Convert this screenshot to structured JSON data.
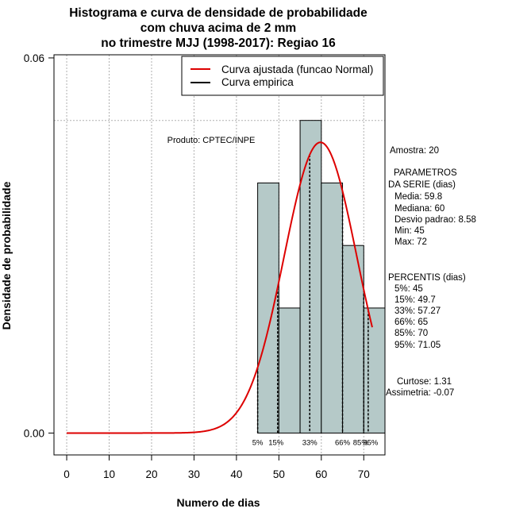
{
  "chart_data": {
    "type": "bar",
    "title_lines": [
      "Histograma e curva de densidade de probabilidade",
      "com chuva acima de 2 mm",
      "no trimestre MJJ (1998-2017): Regiao 16"
    ],
    "xlabel": "Numero de dias",
    "ylabel": "Densidade de probabilidade",
    "xlim": [
      -3,
      75
    ],
    "ylim": [
      -0.0035,
      0.0605
    ],
    "x_ticks": [
      0,
      10,
      20,
      30,
      40,
      50,
      60,
      70
    ],
    "y_ticks": [
      {
        "value": 0.0,
        "label": "0.00"
      },
      {
        "value": 0.06,
        "label": "0.06"
      }
    ],
    "grid": true,
    "reference_line_y": 0.05,
    "histogram": {
      "bins": [
        {
          "x0": 45,
          "x1": 50,
          "density": 0.04
        },
        {
          "x0": 50,
          "x1": 55,
          "density": 0.02
        },
        {
          "x0": 55,
          "x1": 60,
          "density": 0.05
        },
        {
          "x0": 60,
          "x1": 65,
          "density": 0.04
        },
        {
          "x0": 65,
          "x1": 70,
          "density": 0.03
        },
        {
          "x0": 70,
          "x1": 75,
          "density": 0.02
        }
      ],
      "fill_color": "#b5c9c8"
    },
    "fitted_curve": {
      "name": "Curva ajustada (funcao Normal)",
      "distribution": "normal",
      "mean": 59.8,
      "sd": 8.58,
      "x_range": [
        0,
        72
      ],
      "color": "#dd0000"
    },
    "empirical_curve": {
      "name": "Curva empirica",
      "color": "#000000"
    },
    "legend_position": "top-right",
    "percentile_lines": [
      {
        "label": "5%",
        "x": 45
      },
      {
        "label": "15%",
        "x": 49.7
      },
      {
        "label": "33%",
        "x": 57.27
      },
      {
        "label": "66%",
        "x": 65
      },
      {
        "label": "85%",
        "x": 70
      },
      {
        "label": "95%",
        "x": 71.05
      }
    ],
    "annotation": "Produto: CPTEC/INPE",
    "side_text": {
      "amostra": "Amostra: 20",
      "params_header_1": "PARAMETROS",
      "params_header_2": "DA SERIE (dias)",
      "params": [
        "Media: 59.8",
        "Mediana: 60",
        "Desvio padrao: 8.58",
        "Min: 45",
        "Max: 72"
      ],
      "percentis_header": "PERCENTIS (dias)",
      "percentis": [
        "5%: 45",
        "15%: 49.7",
        "33%: 57.27",
        "66%: 65",
        "85%: 70",
        "95%: 71.05"
      ],
      "curtose": "Curtose: 1.31",
      "assimetria": "Assimetria: -0.07"
    }
  }
}
